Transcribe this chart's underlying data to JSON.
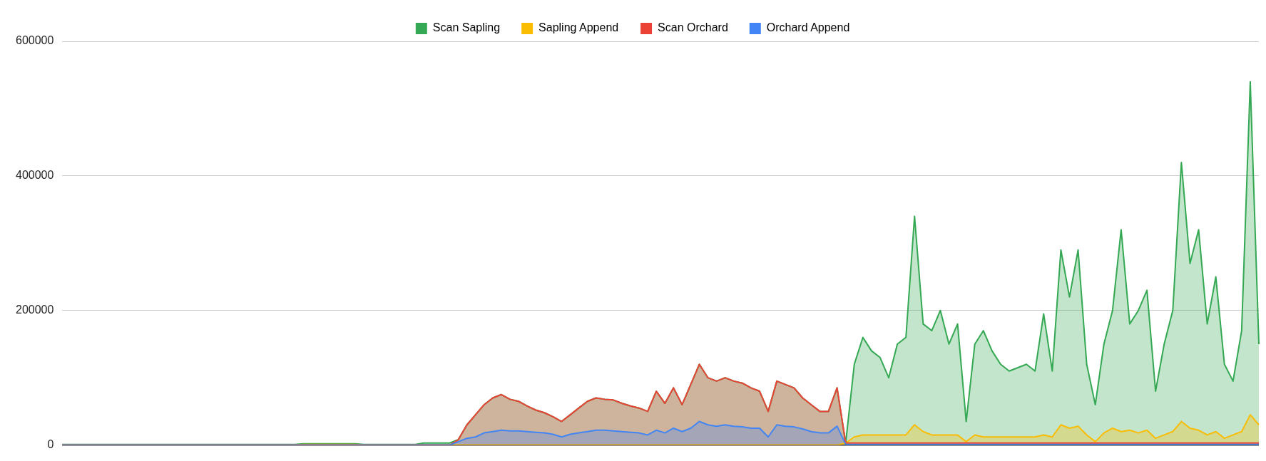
{
  "chart_data": {
    "type": "area",
    "legend": "top",
    "grid": "y",
    "ylim": [
      0,
      600000
    ],
    "yticks": [
      0,
      200000,
      400000,
      600000
    ],
    "categories": [
      null,
      null,
      null,
      null,
      null,
      null,
      null,
      null,
      null,
      null,
      null,
      null,
      null,
      null,
      null,
      null,
      null,
      null,
      null,
      null,
      null,
      null,
      null,
      null,
      null,
      null,
      null,
      null,
      null,
      null,
      null,
      null,
      null,
      null,
      null,
      null,
      null,
      null,
      null,
      null,
      null,
      null,
      null,
      null,
      null,
      null,
      null,
      null,
      null,
      null,
      null,
      null,
      null,
      null,
      null,
      null,
      null,
      null,
      null,
      null,
      null,
      null,
      null,
      null,
      null,
      null,
      null,
      null,
      null,
      null,
      null,
      null,
      null,
      null,
      null,
      null,
      null,
      null,
      null,
      null,
      null,
      null,
      null,
      null,
      null,
      null,
      null,
      null,
      null,
      null,
      null,
      null,
      null,
      null,
      null,
      null,
      null,
      null,
      null,
      null,
      null,
      null,
      null,
      null,
      null,
      null,
      null,
      null,
      null,
      null,
      null,
      null,
      null,
      null,
      null,
      null,
      null,
      null,
      null,
      null,
      null,
      null,
      null,
      null,
      null,
      null,
      null,
      null,
      null,
      null,
      null,
      null,
      null,
      null,
      null,
      null,
      null,
      null,
      null,
      null
    ],
    "series": [
      {
        "name": "Scan Sapling",
        "color": "#34a853",
        "values": [
          1000,
          1000,
          1000,
          1000,
          1000,
          1000,
          1000,
          1000,
          1000,
          1000,
          1000,
          1000,
          1000,
          1000,
          1000,
          1000,
          1000,
          1000,
          1000,
          1000,
          1000,
          1000,
          1000,
          1000,
          1000,
          1000,
          1000,
          1000,
          2000,
          2000,
          2000,
          2000,
          2000,
          2000,
          2000,
          1000,
          1000,
          1000,
          1000,
          1000,
          1000,
          1000,
          3000,
          3000,
          3000,
          3000,
          8000,
          30000,
          45000,
          60000,
          70000,
          75000,
          68000,
          65000,
          58000,
          52000,
          48000,
          42000,
          35000,
          45000,
          55000,
          65000,
          70000,
          68000,
          67000,
          62000,
          58000,
          55000,
          50000,
          80000,
          62000,
          85000,
          60000,
          90000,
          120000,
          100000,
          95000,
          100000,
          95000,
          92000,
          85000,
          80000,
          50000,
          95000,
          90000,
          85000,
          70000,
          60000,
          50000,
          50000,
          85000,
          3000,
          120000,
          160000,
          140000,
          130000,
          100000,
          150000,
          160000,
          340000,
          180000,
          170000,
          200000,
          150000,
          180000,
          35000,
          150000,
          170000,
          140000,
          120000,
          110000,
          115000,
          120000,
          110000,
          195000,
          110000,
          290000,
          220000,
          290000,
          120000,
          60000,
          150000,
          200000,
          320000,
          180000,
          200000,
          230000,
          80000,
          150000,
          200000,
          420000,
          270000,
          320000,
          180000,
          250000,
          120000,
          95000,
          170000,
          540000,
          150000
        ]
      },
      {
        "name": "Sapling Append",
        "color": "#fbbc04",
        "values": [
          0,
          0,
          0,
          0,
          0,
          0,
          0,
          0,
          0,
          0,
          0,
          0,
          0,
          0,
          0,
          0,
          0,
          0,
          0,
          0,
          0,
          0,
          0,
          0,
          0,
          0,
          0,
          0,
          1000,
          1000,
          1000,
          1000,
          1000,
          1000,
          1000,
          0,
          0,
          0,
          0,
          0,
          0,
          0,
          0,
          0,
          0,
          0,
          0,
          0,
          0,
          0,
          0,
          0,
          0,
          0,
          0,
          0,
          0,
          0,
          0,
          0,
          0,
          0,
          0,
          0,
          0,
          0,
          0,
          0,
          0,
          0,
          0,
          0,
          0,
          0,
          0,
          0,
          0,
          0,
          0,
          0,
          0,
          0,
          0,
          0,
          0,
          0,
          0,
          0,
          0,
          0,
          0,
          3000,
          12000,
          15000,
          15000,
          15000,
          15000,
          15000,
          15000,
          30000,
          20000,
          15000,
          15000,
          15000,
          15000,
          5000,
          15000,
          12000,
          12000,
          12000,
          12000,
          12000,
          12000,
          12000,
          15000,
          12000,
          30000,
          25000,
          28000,
          15000,
          5000,
          18000,
          25000,
          20000,
          22000,
          18000,
          22000,
          10000,
          15000,
          20000,
          35000,
          25000,
          22000,
          15000,
          20000,
          10000,
          15000,
          20000,
          45000,
          30000
        ]
      },
      {
        "name": "Scan Orchard",
        "color": "#ea4335",
        "values": [
          0,
          0,
          0,
          0,
          0,
          0,
          0,
          0,
          0,
          0,
          0,
          0,
          0,
          0,
          0,
          0,
          0,
          0,
          0,
          0,
          0,
          0,
          0,
          0,
          0,
          0,
          0,
          0,
          0,
          0,
          0,
          0,
          0,
          0,
          0,
          0,
          0,
          0,
          0,
          0,
          0,
          0,
          0,
          0,
          0,
          0,
          8000,
          30000,
          45000,
          60000,
          70000,
          75000,
          68000,
          65000,
          58000,
          52000,
          48000,
          42000,
          35000,
          45000,
          55000,
          65000,
          70000,
          68000,
          67000,
          62000,
          58000,
          55000,
          50000,
          80000,
          62000,
          85000,
          60000,
          90000,
          120000,
          100000,
          95000,
          100000,
          95000,
          92000,
          85000,
          80000,
          50000,
          95000,
          90000,
          85000,
          70000,
          60000,
          50000,
          50000,
          85000,
          3000,
          3000,
          3000,
          3000,
          3000,
          3000,
          3000,
          3000,
          3000,
          3000,
          3000,
          3000,
          3000,
          3000,
          3000,
          3000,
          3000,
          3000,
          3000,
          3000,
          3000,
          3000,
          3000,
          3000,
          3000,
          3000,
          3000,
          3000,
          3000,
          3000,
          3000,
          3000,
          3000,
          3000,
          3000,
          3000,
          3000,
          3000,
          3000,
          3000,
          3000,
          3000,
          3000,
          3000,
          3000,
          3000,
          3000,
          3000,
          3000
        ]
      },
      {
        "name": "Orchard Append",
        "color": "#4285f4",
        "values": [
          0,
          0,
          0,
          0,
          0,
          0,
          0,
          0,
          0,
          0,
          0,
          0,
          0,
          0,
          0,
          0,
          0,
          0,
          0,
          0,
          0,
          0,
          0,
          0,
          0,
          0,
          0,
          0,
          0,
          0,
          0,
          0,
          0,
          0,
          0,
          0,
          0,
          0,
          0,
          0,
          0,
          0,
          0,
          0,
          0,
          0,
          5000,
          10000,
          12000,
          18000,
          20000,
          22000,
          21000,
          21000,
          20000,
          19000,
          18000,
          16000,
          12000,
          16000,
          18000,
          20000,
          22000,
          22000,
          21000,
          20000,
          19000,
          18000,
          15000,
          22000,
          18000,
          25000,
          20000,
          25000,
          35000,
          30000,
          28000,
          30000,
          28000,
          27000,
          25000,
          25000,
          12000,
          30000,
          28000,
          27000,
          24000,
          20000,
          18000,
          18000,
          28000,
          1000,
          1000,
          1000,
          1000,
          1000,
          1000,
          1000,
          1000,
          1000,
          1000,
          1000,
          1000,
          1000,
          1000,
          1000,
          1000,
          1000,
          1000,
          1000,
          1000,
          1000,
          1000,
          1000,
          1000,
          1000,
          1000,
          1000,
          1000,
          1000,
          1000,
          1000,
          1000,
          1000,
          1000,
          1000,
          1000,
          1000,
          1000,
          1000,
          1000,
          1000,
          1000,
          1000,
          1000,
          1000,
          1000,
          1000,
          1000,
          1000
        ]
      }
    ]
  }
}
